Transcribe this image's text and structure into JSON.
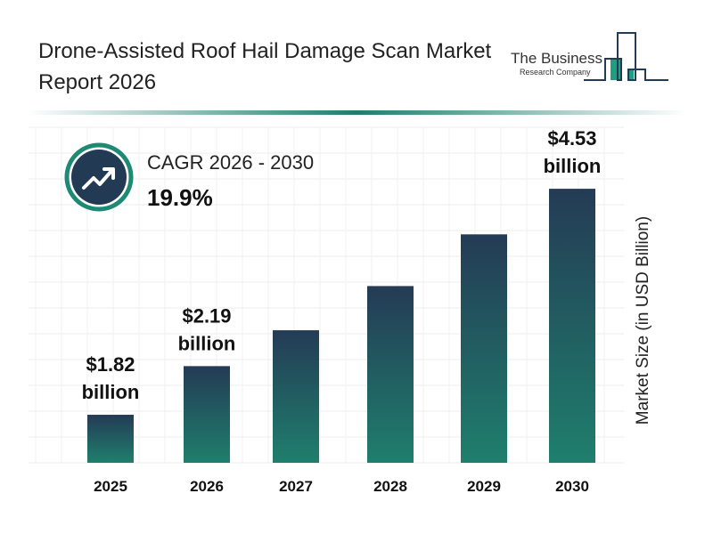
{
  "header": {
    "title": "Drone-Assisted Roof Hail Damage Scan Market Report 2026"
  },
  "logo": {
    "line1": "The Business",
    "line2": "Research Company"
  },
  "cagr": {
    "label": "CAGR 2026 - 2030",
    "value": "19.9%",
    "icon": "trending-up-icon"
  },
  "colors": {
    "bar_top": "#243b55",
    "bar_bottom": "#1f7f6d",
    "accent": "#1e8a73",
    "icon_bg": "#233a55"
  },
  "chart_data": {
    "type": "bar",
    "categories": [
      "2025",
      "2026",
      "2027",
      "2028",
      "2029",
      "2030"
    ],
    "values": [
      1.82,
      2.19,
      2.62,
      3.15,
      3.77,
      4.53
    ],
    "data_labels": [
      {
        "index": 0,
        "value": "$1.82",
        "unit": "billion"
      },
      {
        "index": 1,
        "value": "$2.19",
        "unit": "billion"
      },
      {
        "index": 5,
        "value": "$4.53",
        "unit": "billion"
      }
    ],
    "ylabel": "Market Size (in USD Billion)",
    "grid": true
  }
}
